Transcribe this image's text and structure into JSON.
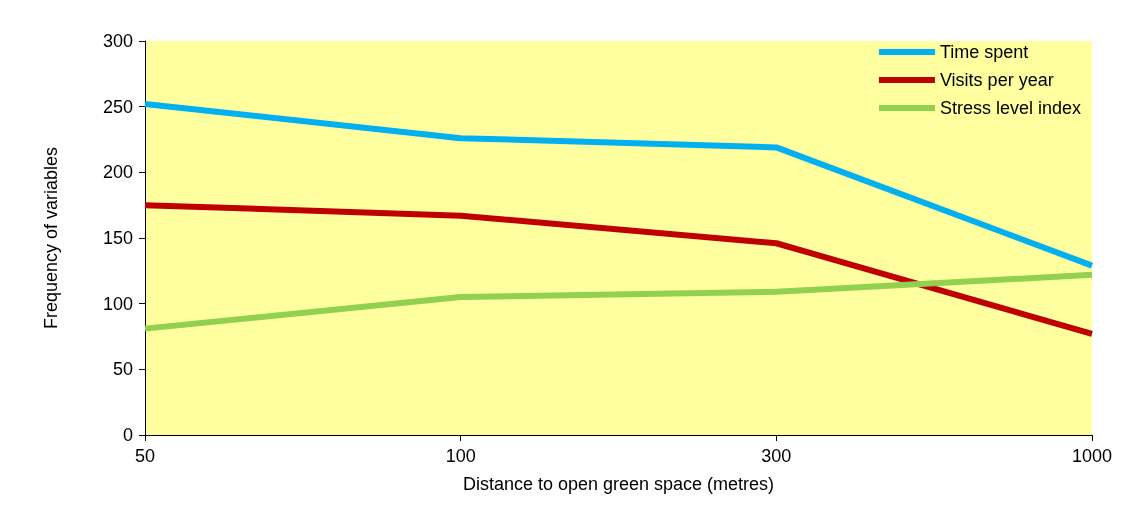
{
  "chart_data": {
    "type": "line",
    "xlabel": "Distance to open green space (metres)",
    "ylabel": "Frequency of variables",
    "categories": [
      "50",
      "100",
      "300",
      "1000"
    ],
    "series": [
      {
        "name": "Time spent",
        "color": "#00b0f0",
        "values": [
          252,
          226,
          219,
          129
        ]
      },
      {
        "name": "Visits per year",
        "color": "#c00000",
        "values": [
          175,
          167,
          146,
          77
        ]
      },
      {
        "name": "Stress level index",
        "color": "#92d050",
        "values": [
          81,
          105,
          109,
          122
        ]
      }
    ],
    "ylim": [
      0,
      300
    ],
    "yticks": [
      0,
      50,
      100,
      150,
      200,
      250,
      300
    ],
    "grid": false,
    "legend": "top right",
    "marker": "none",
    "line_style": "solid"
  }
}
